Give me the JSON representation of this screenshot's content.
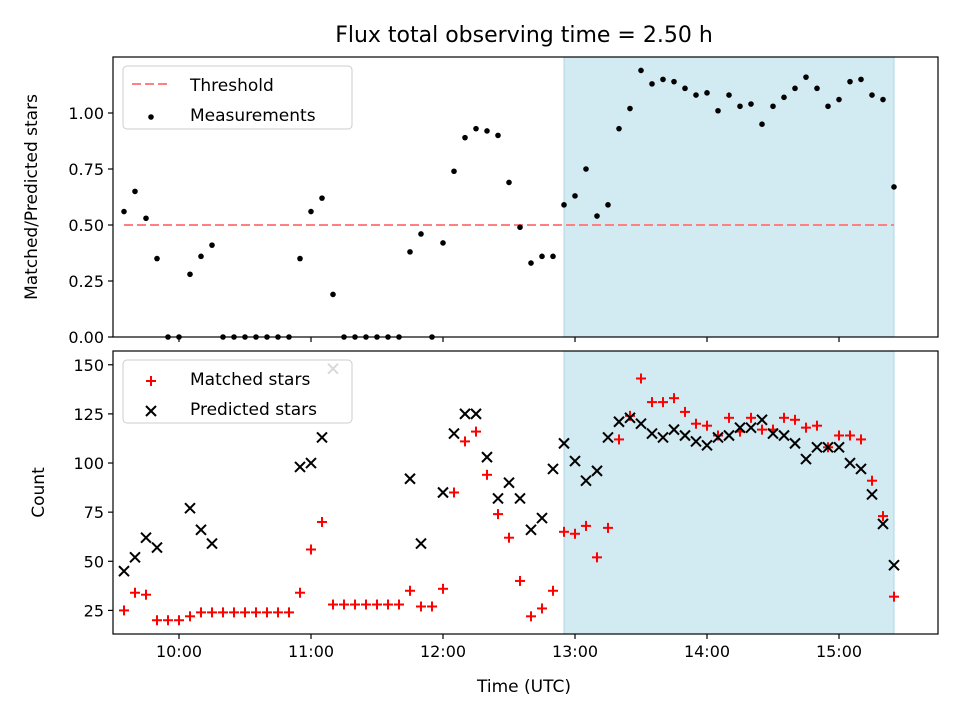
{
  "figure": {
    "title": "Flux total observing time = 2.50 h",
    "xlabel": "Time (UTC)"
  },
  "colors": {
    "threshold": "#ff8080",
    "measurement": "#000000",
    "matched": "#ff0000",
    "predicted": "#000000",
    "shade": "#add8e6"
  },
  "chart_data": [
    {
      "type": "scatter",
      "panel": "top",
      "xaxis": "time",
      "ylabel": "Matched/Predicted stars",
      "xlim": [
        "09:30",
        "15:45"
      ],
      "ylim": [
        0,
        1.25
      ],
      "x_ticks": [
        "10:00",
        "11:00",
        "12:00",
        "13:00",
        "14:00",
        "15:00"
      ],
      "y_ticks": [
        "0.00",
        "0.25",
        "0.50",
        "0.75",
        "1.00"
      ],
      "shaded_span": [
        "12:55",
        "15:25"
      ],
      "legend": {
        "placement": "upper-left",
        "entries": [
          "Threshold",
          "Measurements"
        ]
      },
      "threshold": {
        "name": "Threshold",
        "y": 0.5,
        "x": [
          "09:35",
          "15:25"
        ],
        "style": "dashed"
      },
      "series": [
        {
          "name": "Measurements",
          "marker": "dot",
          "points": [
            [
              "09:35",
              0.56
            ],
            [
              "09:40",
              0.65
            ],
            [
              "09:45",
              0.53
            ],
            [
              "09:50",
              0.35
            ],
            [
              "09:55",
              0.0
            ],
            [
              "10:00",
              0.0
            ],
            [
              "10:05",
              0.28
            ],
            [
              "10:10",
              0.36
            ],
            [
              "10:15",
              0.41
            ],
            [
              "10:20",
              0.0
            ],
            [
              "10:25",
              0.0
            ],
            [
              "10:30",
              0.0
            ],
            [
              "10:35",
              0.0
            ],
            [
              "10:40",
              0.0
            ],
            [
              "10:45",
              0.0
            ],
            [
              "10:50",
              0.0
            ],
            [
              "10:55",
              0.35
            ],
            [
              "11:00",
              0.56
            ],
            [
              "11:05",
              0.62
            ],
            [
              "11:10",
              0.19
            ],
            [
              "11:15",
              0.0
            ],
            [
              "11:20",
              0.0
            ],
            [
              "11:25",
              0.0
            ],
            [
              "11:30",
              0.0
            ],
            [
              "11:35",
              0.0
            ],
            [
              "11:40",
              0.0
            ],
            [
              "11:45",
              0.38
            ],
            [
              "11:50",
              0.46
            ],
            [
              "11:55",
              0.0
            ],
            [
              "12:00",
              0.42
            ],
            [
              "12:05",
              0.74
            ],
            [
              "12:10",
              0.89
            ],
            [
              "12:15",
              0.93
            ],
            [
              "12:20",
              0.92
            ],
            [
              "12:25",
              0.9
            ],
            [
              "12:30",
              0.69
            ],
            [
              "12:35",
              0.49
            ],
            [
              "12:40",
              0.33
            ],
            [
              "12:45",
              0.36
            ],
            [
              "12:50",
              0.36
            ],
            [
              "12:55",
              0.59
            ],
            [
              "13:00",
              0.63
            ],
            [
              "13:05",
              0.75
            ],
            [
              "13:10",
              0.54
            ],
            [
              "13:15",
              0.59
            ],
            [
              "13:20",
              0.93
            ],
            [
              "13:25",
              1.02
            ],
            [
              "13:30",
              1.19
            ],
            [
              "13:35",
              1.13
            ],
            [
              "13:40",
              1.15
            ],
            [
              "13:45",
              1.14
            ],
            [
              "13:50",
              1.11
            ],
            [
              "13:55",
              1.08
            ],
            [
              "14:00",
              1.09
            ],
            [
              "14:05",
              1.01
            ],
            [
              "14:10",
              1.08
            ],
            [
              "14:15",
              1.03
            ],
            [
              "14:20",
              1.04
            ],
            [
              "14:25",
              0.95
            ],
            [
              "14:30",
              1.03
            ],
            [
              "14:35",
              1.07
            ],
            [
              "14:40",
              1.11
            ],
            [
              "14:45",
              1.16
            ],
            [
              "14:50",
              1.11
            ],
            [
              "14:55",
              1.03
            ],
            [
              "15:00",
              1.06
            ],
            [
              "15:05",
              1.14
            ],
            [
              "15:10",
              1.15
            ],
            [
              "15:15",
              1.08
            ],
            [
              "15:20",
              1.06
            ],
            [
              "15:25",
              0.67
            ]
          ]
        }
      ]
    },
    {
      "type": "scatter",
      "panel": "bottom",
      "xaxis": "time",
      "ylabel": "Count",
      "xlim": [
        "09:30",
        "15:45"
      ],
      "ylim": [
        13,
        157
      ],
      "x_ticks": [
        "10:00",
        "11:00",
        "12:00",
        "13:00",
        "14:00",
        "15:00"
      ],
      "x_tick_labels": [
        "10:00",
        "11:00",
        "12:00",
        "13:00",
        "14:00",
        "15:00"
      ],
      "y_ticks": [
        "25",
        "50",
        "75",
        "100",
        "125",
        "150"
      ],
      "shaded_span": [
        "12:55",
        "15:25"
      ],
      "legend": {
        "placement": "upper-left",
        "entries": [
          "Matched stars",
          "Predicted stars"
        ]
      },
      "series": [
        {
          "name": "Matched stars",
          "marker": "plus",
          "points": [
            [
              "09:35",
              25
            ],
            [
              "09:40",
              34
            ],
            [
              "09:45",
              33
            ],
            [
              "09:50",
              20
            ],
            [
              "09:55",
              20
            ],
            [
              "10:00",
              20
            ],
            [
              "10:05",
              22
            ],
            [
              "10:10",
              24
            ],
            [
              "10:15",
              24
            ],
            [
              "10:20",
              24
            ],
            [
              "10:25",
              24
            ],
            [
              "10:30",
              24
            ],
            [
              "10:35",
              24
            ],
            [
              "10:40",
              24
            ],
            [
              "10:45",
              24
            ],
            [
              "10:50",
              24
            ],
            [
              "10:55",
              34
            ],
            [
              "11:00",
              56
            ],
            [
              "11:05",
              70
            ],
            [
              "11:10",
              28
            ],
            [
              "11:15",
              28
            ],
            [
              "11:20",
              28
            ],
            [
              "11:25",
              28
            ],
            [
              "11:30",
              28
            ],
            [
              "11:35",
              28
            ],
            [
              "11:40",
              28
            ],
            [
              "11:45",
              35
            ],
            [
              "11:50",
              27
            ],
            [
              "11:55",
              27
            ],
            [
              "12:00",
              36
            ],
            [
              "12:05",
              85
            ],
            [
              "12:10",
              111
            ],
            [
              "12:15",
              116
            ],
            [
              "12:20",
              94
            ],
            [
              "12:25",
              74
            ],
            [
              "12:30",
              62
            ],
            [
              "12:35",
              40
            ],
            [
              "12:40",
              22
            ],
            [
              "12:45",
              26
            ],
            [
              "12:50",
              35
            ],
            [
              "12:55",
              65
            ],
            [
              "13:00",
              64
            ],
            [
              "13:05",
              68
            ],
            [
              "13:10",
              52
            ],
            [
              "13:15",
              67
            ],
            [
              "13:20",
              112
            ],
            [
              "13:25",
              124
            ],
            [
              "13:30",
              143
            ],
            [
              "13:35",
              131
            ],
            [
              "13:40",
              131
            ],
            [
              "13:45",
              133
            ],
            [
              "13:50",
              126
            ],
            [
              "13:55",
              120
            ],
            [
              "14:00",
              119
            ],
            [
              "14:05",
              114
            ],
            [
              "14:10",
              123
            ],
            [
              "14:15",
              116
            ],
            [
              "14:20",
              123
            ],
            [
              "14:25",
              117
            ],
            [
              "14:30",
              117
            ],
            [
              "14:35",
              123
            ],
            [
              "14:40",
              122
            ],
            [
              "14:45",
              118
            ],
            [
              "14:50",
              119
            ],
            [
              "14:55",
              108
            ],
            [
              "15:00",
              114
            ],
            [
              "15:05",
              114
            ],
            [
              "15:10",
              112
            ],
            [
              "15:15",
              91
            ],
            [
              "15:20",
              73
            ],
            [
              "15:25",
              32
            ]
          ]
        },
        {
          "name": "Predicted stars",
          "marker": "x",
          "points": [
            [
              "09:35",
              45
            ],
            [
              "09:40",
              52
            ],
            [
              "09:45",
              62
            ],
            [
              "09:50",
              57
            ],
            [
              "10:05",
              77
            ],
            [
              "10:10",
              66
            ],
            [
              "10:15",
              59
            ],
            [
              "10:55",
              98
            ],
            [
              "11:00",
              100
            ],
            [
              "11:05",
              113
            ],
            [
              "11:10",
              148
            ],
            [
              "11:45",
              92
            ],
            [
              "11:50",
              59
            ],
            [
              "12:00",
              85
            ],
            [
              "12:05",
              115
            ],
            [
              "12:10",
              125
            ],
            [
              "12:15",
              125
            ],
            [
              "12:20",
              103
            ],
            [
              "12:25",
              82
            ],
            [
              "12:30",
              90
            ],
            [
              "12:35",
              82
            ],
            [
              "12:40",
              66
            ],
            [
              "12:45",
              72
            ],
            [
              "12:50",
              97
            ],
            [
              "12:55",
              110
            ],
            [
              "13:00",
              101
            ],
            [
              "13:05",
              91
            ],
            [
              "13:10",
              96
            ],
            [
              "13:15",
              113
            ],
            [
              "13:20",
              121
            ],
            [
              "13:25",
              123
            ],
            [
              "13:30",
              120
            ],
            [
              "13:35",
              115
            ],
            [
              "13:40",
              113
            ],
            [
              "13:45",
              117
            ],
            [
              "13:50",
              114
            ],
            [
              "13:55",
              111
            ],
            [
              "14:00",
              109
            ],
            [
              "14:05",
              113
            ],
            [
              "14:10",
              114
            ],
            [
              "14:15",
              118
            ],
            [
              "14:20",
              118
            ],
            [
              "14:25",
              122
            ],
            [
              "14:30",
              115
            ],
            [
              "14:35",
              114
            ],
            [
              "14:40",
              110
            ],
            [
              "14:45",
              102
            ],
            [
              "14:50",
              108
            ],
            [
              "14:55",
              108
            ],
            [
              "15:00",
              108
            ],
            [
              "15:05",
              100
            ],
            [
              "15:10",
              97
            ],
            [
              "15:15",
              84
            ],
            [
              "15:20",
              69
            ],
            [
              "15:25",
              48
            ]
          ]
        }
      ]
    }
  ]
}
